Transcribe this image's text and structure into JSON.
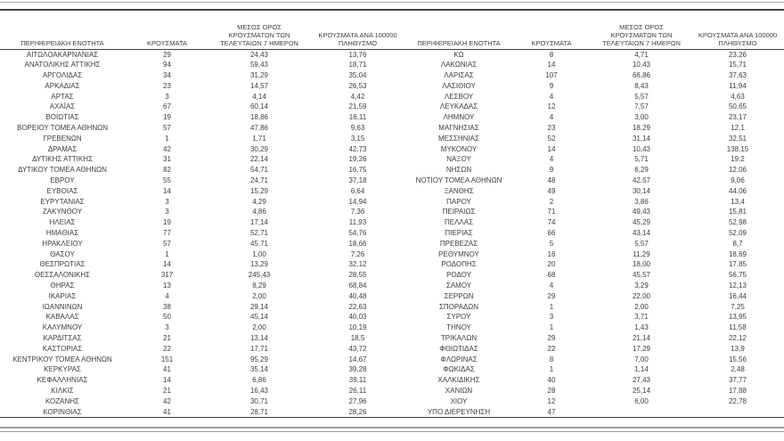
{
  "document": {
    "kind": "regional-cases-table",
    "decimal_separator": ",",
    "colors": {
      "text": "#3d3d3d",
      "rule_dark": "#424242",
      "rule_grey": "#9b9b9b",
      "background": "#ffffff"
    }
  },
  "tables": [
    {
      "id": "left",
      "headers": [
        "ΠΕΡΙΦΕΡΕΙΑΚΗ ΕΝΟΤΗΤΑ",
        "ΚΡΟΥΣΜΑΤΑ",
        "ΜΕΣΟΣ ΟΡΟΣ ΚΡΟΥΣΜΑΤΩΝ ΤΩΝ ΤΕΛΕΥΤΑΙΩΝ 7 ΗΜΕΡΩΝ",
        "ΚΡΟΥΣΜΑΤΑ ΑΝΑ 100000 ΠΛΗΘΥΣΜΟ"
      ],
      "rows": [
        [
          "ΑΙΤΩΛΟΑΚΑΡΝΑΝΙΑΣ",
          "29",
          "24,43",
          "13,76"
        ],
        [
          "ΑΝΑΤΟΛΙΚΗΣ ΑΤΤΙΚΗΣ",
          "94",
          "59,43",
          "18,71"
        ],
        [
          "ΑΡΓΟΛΙΔΑΣ",
          "34",
          "31,29",
          "35,04"
        ],
        [
          "ΑΡΚΑΔΙΑΣ",
          "23",
          "14,57",
          "26,53"
        ],
        [
          "ΑΡΤΑΣ",
          "3",
          "4,14",
          "4,42"
        ],
        [
          "ΑΧΑΪΑΣ",
          "67",
          "60,14",
          "21,59"
        ],
        [
          "ΒΟΙΩΤΙΑΣ",
          "19",
          "18,86",
          "16,11"
        ],
        [
          "ΒΟΡΕΙΟΥ ΤΟΜΕΑ ΑΘΗΝΩΝ",
          "57",
          "47,86",
          "9,63"
        ],
        [
          "ΓΡΕΒΕΝΩΝ",
          "1",
          "1,71",
          "3,15"
        ],
        [
          "ΔΡΑΜΑΣ",
          "42",
          "30,29",
          "42,73"
        ],
        [
          "ΔΥΤΙΚΗΣ ΑΤΤΙΚΗΣ",
          "31",
          "22,14",
          "19,26"
        ],
        [
          "ΔΥΤΙΚΟΥ ΤΟΜΕΑ ΑΘΗΝΩΝ",
          "82",
          "54,71",
          "16,75"
        ],
        [
          "ΕΒΡΟΥ",
          "55",
          "24,71",
          "37,18"
        ],
        [
          "ΕΥΒΟΙΑΣ",
          "14",
          "15,29",
          "6,64"
        ],
        [
          "ΕΥΡΥΤΑΝΙΑΣ",
          "3",
          "4,29",
          "14,94"
        ],
        [
          "ΖΑΚΥΝΘΟΥ",
          "3",
          "4,86",
          "7,36"
        ],
        [
          "ΗΛΕΙΑΣ",
          "19",
          "17,14",
          "11,93"
        ],
        [
          "ΗΜΑΘΙΑΣ",
          "77",
          "52,71",
          "54,76"
        ],
        [
          "ΗΡΑΚΛΕΙΟΥ",
          "57",
          "45,71",
          "18,66"
        ],
        [
          "ΘΑΣΟΥ",
          "1",
          "1,00",
          "7,26"
        ],
        [
          "ΘΕΣΠΡΩΤΙΑΣ",
          "14",
          "13,29",
          "32,12"
        ],
        [
          "ΘΕΣΣΑΛΟΝΙΚΗΣ",
          "317",
          "245,43",
          "28,55"
        ],
        [
          "ΘΗΡΑΣ",
          "13",
          "8,29",
          "68,84"
        ],
        [
          "ΙΚΑΡΙΑΣ",
          "4",
          "2,00",
          "40,48"
        ],
        [
          "ΙΩΑΝΝΙΝΩΝ",
          "38",
          "29,14",
          "22,63"
        ],
        [
          "ΚΑΒΑΛΑΣ",
          "50",
          "45,14",
          "40,03"
        ],
        [
          "ΚΑΛΥΜΝΟΥ",
          "3",
          "2,00",
          "10,19"
        ],
        [
          "ΚΑΡΔΙΤΣΑΣ",
          "21",
          "13,14",
          "18,5"
        ],
        [
          "ΚΑΣΤΟΡΙΑΣ",
          "22",
          "17,71",
          "43,72"
        ],
        [
          "ΚΕΝΤΡΙΚΟΥ ΤΟΜΕΑ ΑΘΗΝΩΝ",
          "151",
          "95,29",
          "14,67"
        ],
        [
          "ΚΕΡΚΥΡΑΣ",
          "41",
          "35,14",
          "39,28"
        ],
        [
          "ΚΕΦΑΛΛΗΝΙΑΣ",
          "14",
          "6,86",
          "39,11"
        ],
        [
          "ΚΙΛΚΙΣ",
          "21",
          "16,43",
          "26,11"
        ],
        [
          "ΚΟΖΑΝΗΣ",
          "42",
          "30,71",
          "27,96"
        ],
        [
          "ΚΟΡΙΝΘΙΑΣ",
          "41",
          "28,71",
          "28,26"
        ]
      ]
    },
    {
      "id": "right",
      "headers": [
        "ΠΕΡΙΦΕΡΕΙΑΚΗ ΕΝΟΤΗΤΑ",
        "ΚΡΟΥΣΜΑΤΑ",
        "ΜΕΣΟΣ ΟΡΟΣ ΚΡΟΥΣΜΑΤΩΝ ΤΩΝ ΤΕΛΕΥΤΑΙΩΝ 7 ΗΜΕΡΩΝ",
        "ΚΡΟΥΣΜΑΤΑ ΑΝΑ 100000 ΠΛΗΘΥΣΜΟ"
      ],
      "rows": [
        [
          "ΚΩ",
          "8",
          "4,71",
          "23,26"
        ],
        [
          "ΛΑΚΩΝΙΑΣ",
          "14",
          "10,43",
          "15,71"
        ],
        [
          "ΛΑΡΙΣΑΣ",
          "107",
          "66,86",
          "37,63"
        ],
        [
          "ΛΑΣΙΘΙΟΥ",
          "9",
          "8,43",
          "11,94"
        ],
        [
          "ΛΕΣΒΟΥ",
          "4",
          "5,57",
          "4,63"
        ],
        [
          "ΛΕΥΚΑΔΑΣ",
          "12",
          "7,57",
          "50,65"
        ],
        [
          "ΛΗΜΝΟΥ",
          "4",
          "3,00",
          "23,17"
        ],
        [
          "ΜΑΓΝΗΣΙΑΣ",
          "23",
          "18,29",
          "12,1"
        ],
        [
          "ΜΕΣΣΗΝΙΑΣ",
          "52",
          "31,14",
          "32,51"
        ],
        [
          "ΜΥΚΟΝΟΥ",
          "14",
          "10,43",
          "138,15"
        ],
        [
          "ΝΑΞΟΥ",
          "4",
          "5,71",
          "19,2"
        ],
        [
          "ΝΗΣΩΝ",
          "9",
          "6,29",
          "12,06"
        ],
        [
          "ΝΟΤΙΟΥ ΤΟΜΕΑ ΑΘΗΝΩΝ",
          "48",
          "42,57",
          "9,06"
        ],
        [
          "ΞΑΝΘΗΣ",
          "49",
          "30,14",
          "44,06"
        ],
        [
          "ΠΑΡΟΥ",
          "2",
          "3,86",
          "13,4"
        ],
        [
          "ΠΕΙΡΑΙΩΣ",
          "71",
          "49,43",
          "15,81"
        ],
        [
          "ΠΕΛΛΑΣ",
          "74",
          "45,29",
          "52,98"
        ],
        [
          "ΠΙΕΡΙΑΣ",
          "66",
          "43,14",
          "52,09"
        ],
        [
          "ΠΡΕΒΕΖΑΣ",
          "5",
          "5,57",
          "8,7"
        ],
        [
          "ΡΕΘΥΜΝΟΥ",
          "16",
          "11,29",
          "18,69"
        ],
        [
          "ΡΟΔΟΠΗΣ",
          "20",
          "18,00",
          "17,85"
        ],
        [
          "ΡΟΔΟΥ",
          "68",
          "45,57",
          "56,75"
        ],
        [
          "ΣΑΜΟΥ",
          "4",
          "3,29",
          "12,13"
        ],
        [
          "ΣΕΡΡΩΝ",
          "29",
          "22,00",
          "16,44"
        ],
        [
          "ΣΠΟΡΑΔΩΝ",
          "1",
          "2,00",
          "7,25"
        ],
        [
          "ΣΥΡΟΥ",
          "3",
          "3,71",
          "13,95"
        ],
        [
          "ΤΗΝΟΥ",
          "1",
          "1,43",
          "11,58"
        ],
        [
          "ΤΡΙΚΑΛΩΝ",
          "29",
          "21,14",
          "22,12"
        ],
        [
          "ΦΘΙΩΤΙΔΑΣ",
          "22",
          "17,29",
          "13,9"
        ],
        [
          "ΦΛΩΡΙΝΑΣ",
          "8",
          "7,00",
          "15,56"
        ],
        [
          "ΦΩΚΙΔΑΣ",
          "1",
          "1,14",
          "2,48"
        ],
        [
          "ΧΑΛΚΙΔΙΚΗΣ",
          "40",
          "27,43",
          "37,77"
        ],
        [
          "ΧΑΝΙΩΝ",
          "28",
          "25,14",
          "17,88"
        ],
        [
          "ΧΙΟΥ",
          "12",
          "6,00",
          "22,78"
        ],
        [
          "ΥΠΟ ΔΙΕΡΕΥΝΗΣΗ",
          "47",
          "",
          ""
        ]
      ]
    }
  ]
}
